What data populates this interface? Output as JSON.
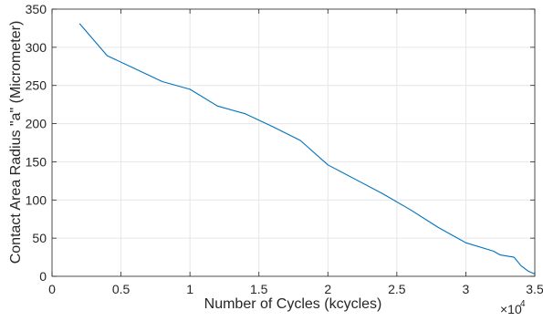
{
  "chart_data": {
    "type": "line",
    "title": "",
    "xlabel": "Number of Cycles (kcycles)",
    "ylabel": "Contact Area Radius \"a\" (Micrometer)",
    "x_multiplier_label": "×10^4",
    "x_multiplier_base": "×10",
    "x_multiplier_exp": "4",
    "xlim": [
      0,
      35000
    ],
    "ylim": [
      0,
      350
    ],
    "xticks": [
      0,
      5000,
      10000,
      15000,
      20000,
      25000,
      30000,
      35000
    ],
    "xtick_labels": [
      "0",
      "0.5",
      "1",
      "1.5",
      "2",
      "2.5",
      "3",
      "3.5"
    ],
    "yticks": [
      0,
      50,
      100,
      150,
      200,
      250,
      300,
      350
    ],
    "ytick_labels": [
      "0",
      "50",
      "100",
      "150",
      "200",
      "250",
      "300",
      "350"
    ],
    "grid": true,
    "series": [
      {
        "color": "#0072BD",
        "x": [
          2000,
          4000,
          6000,
          8000,
          10000,
          12000,
          14000,
          16000,
          18000,
          20000,
          22000,
          24000,
          26000,
          28000,
          30000,
          32000,
          32500,
          33500,
          34000,
          34500,
          35000
        ],
        "y": [
          331,
          289,
          272,
          255,
          245,
          223,
          213,
          196,
          178,
          146,
          127,
          108,
          87,
          64,
          44,
          33,
          28,
          25,
          14,
          7,
          3
        ]
      }
    ]
  }
}
